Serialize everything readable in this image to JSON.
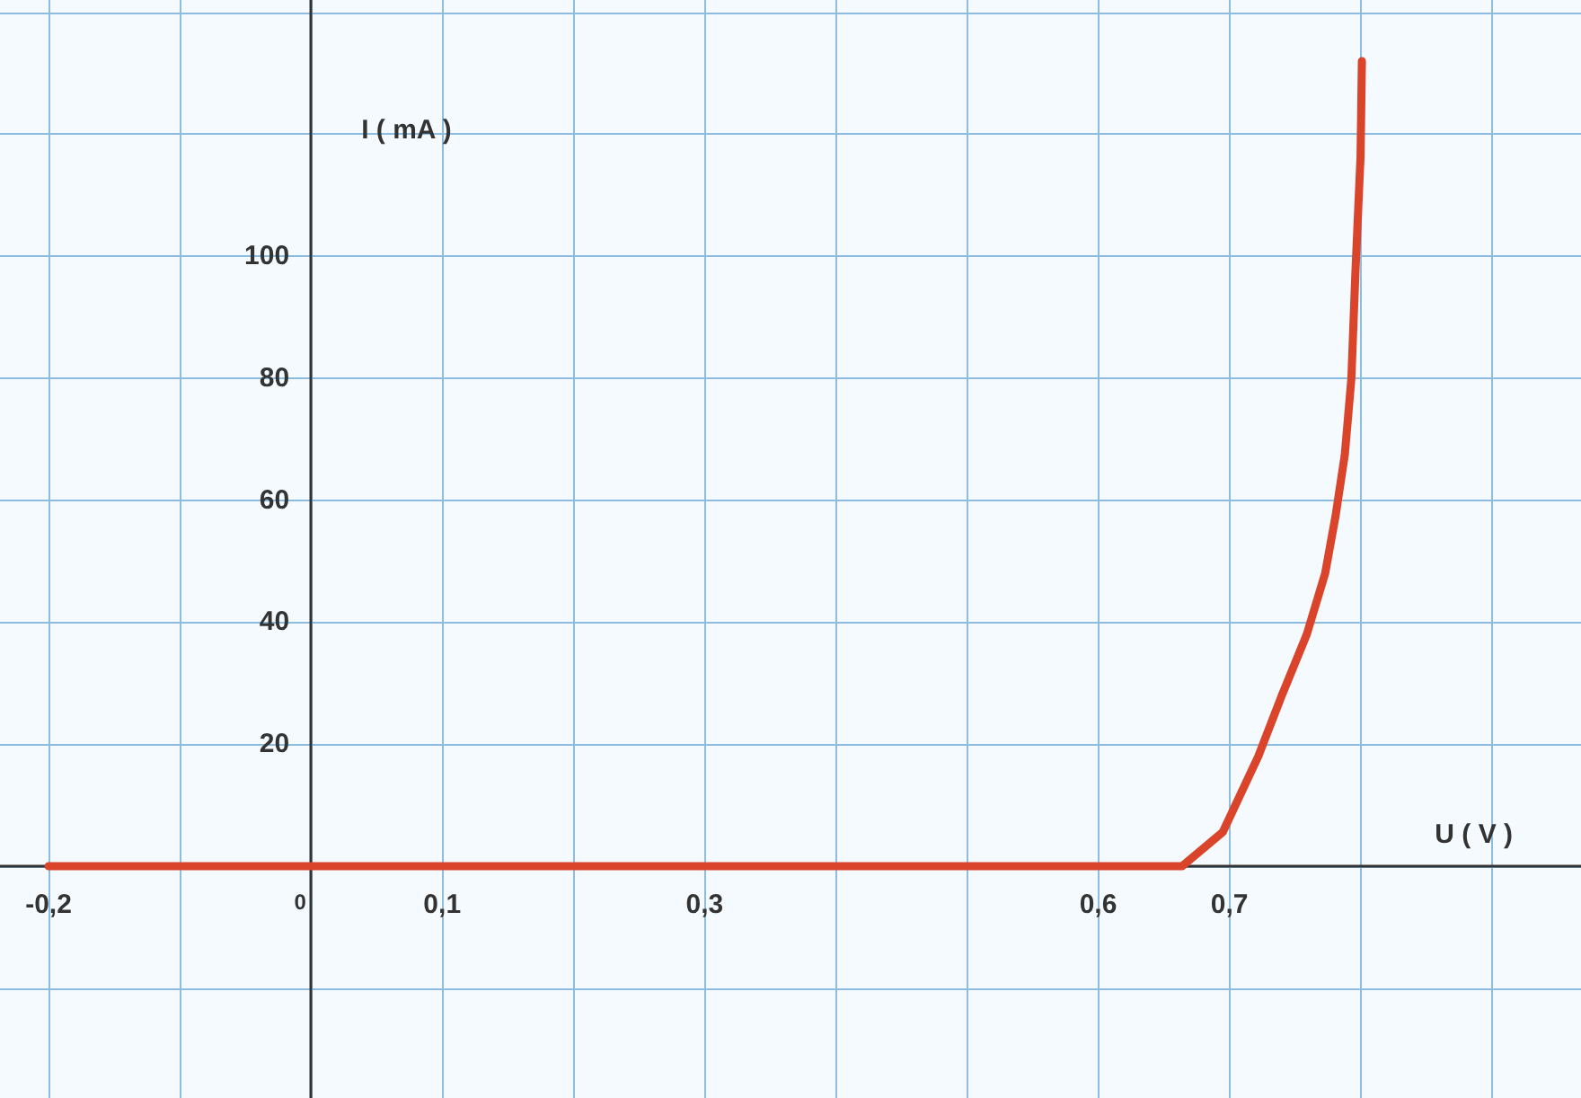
{
  "chart_data": {
    "type": "line",
    "xlabel": "U ( V )",
    "ylabel": "I ( mA )",
    "x": [
      -0.2,
      0.664,
      0.695,
      0.722,
      0.74,
      0.759,
      0.773,
      0.781,
      0.788,
      0.793,
      0.796,
      0.8,
      0.801
    ],
    "series": [
      {
        "color": "#d9442a",
        "values": [
          0,
          0,
          5.6,
          18,
          28,
          38,
          48,
          57.5,
          67.5,
          80,
          97,
          116.5,
          132
        ]
      }
    ],
    "xlim": [
      -0.237,
      0.968
    ],
    "ylim": [
      -38,
      142
    ],
    "xticks": [
      {
        "value": -0.2,
        "label": "-0,2"
      },
      {
        "value": -0.1,
        "label": null
      },
      {
        "value": 0,
        "label": "0"
      },
      {
        "value": 0.1,
        "label": "0,1"
      },
      {
        "value": 0.2,
        "label": null
      },
      {
        "value": 0.3,
        "label": "0,3"
      },
      {
        "value": 0.4,
        "label": null
      },
      {
        "value": 0.5,
        "label": null
      },
      {
        "value": 0.6,
        "label": "0,6"
      },
      {
        "value": 0.7,
        "label": "0,7"
      },
      {
        "value": 0.8,
        "label": null
      },
      {
        "value": 0.9,
        "label": null
      }
    ],
    "yticks": [
      {
        "value": -20,
        "label": null
      },
      {
        "value": 0,
        "label": null
      },
      20,
      40,
      60,
      80,
      100,
      {
        "value": 120,
        "label": null
      },
      {
        "value": 140,
        "label": null
      }
    ],
    "grid": true,
    "marker": "none",
    "line_style": "solid"
  }
}
